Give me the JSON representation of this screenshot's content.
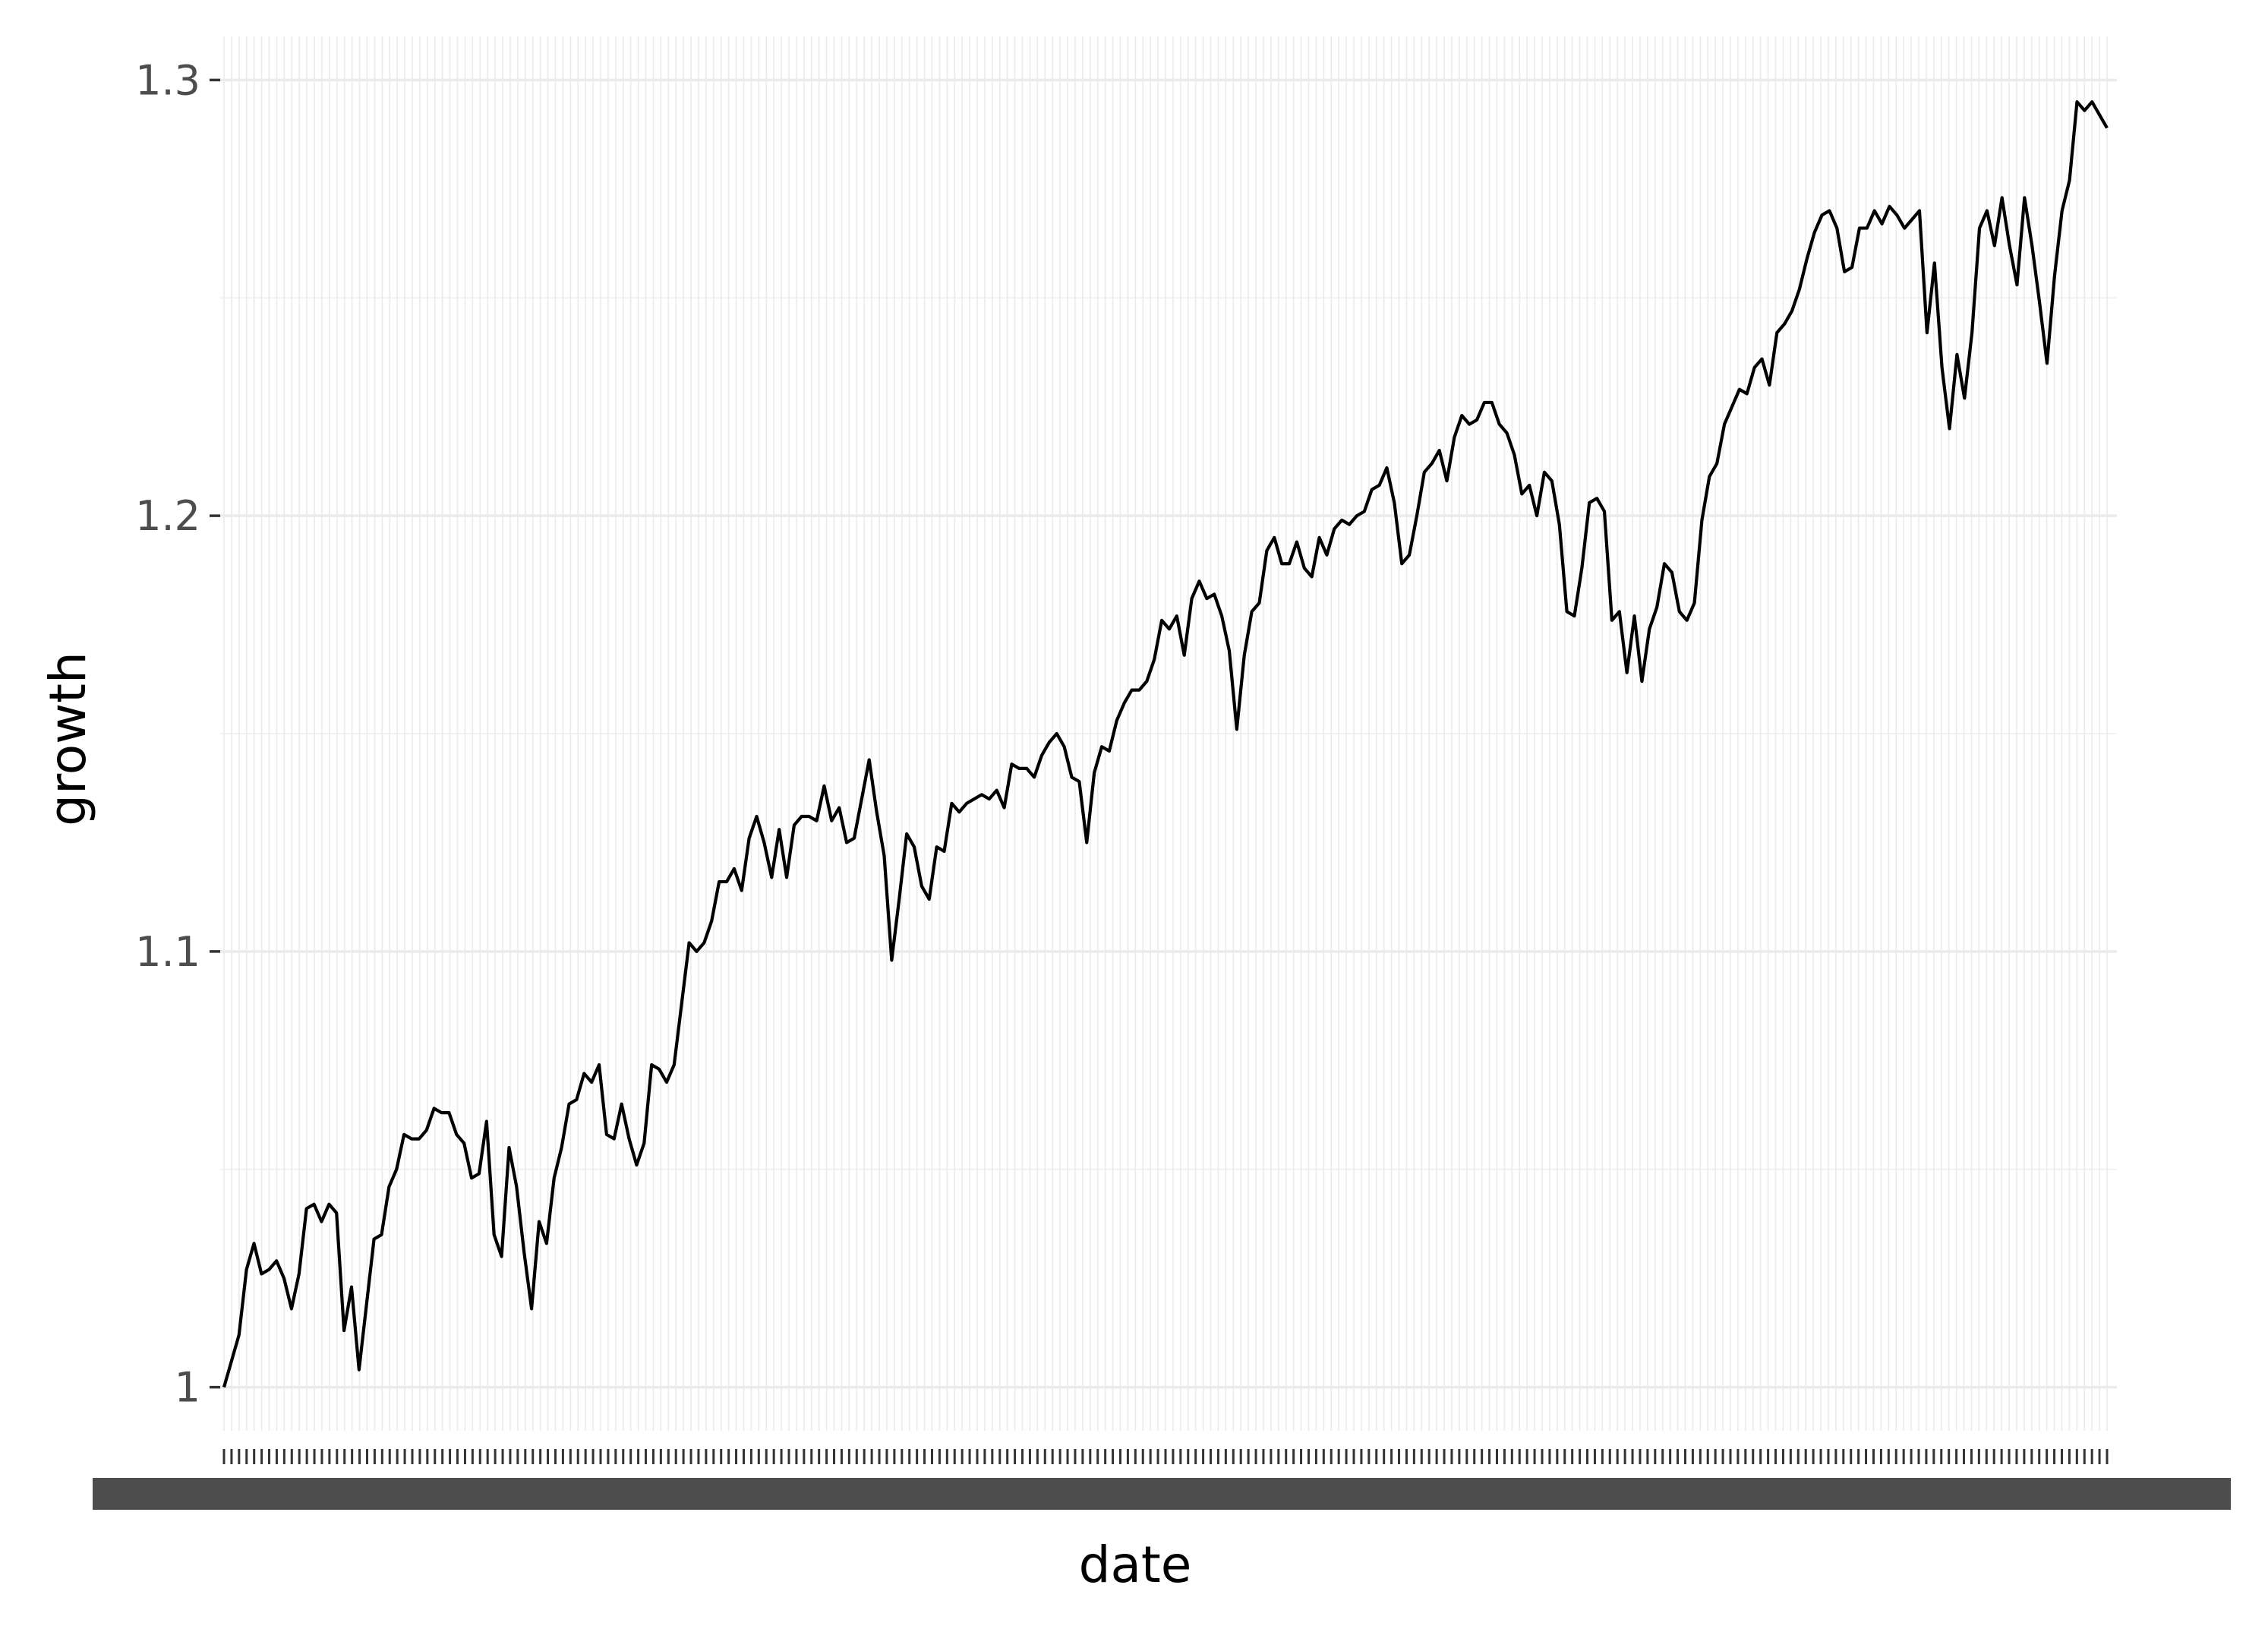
{
  "chart_data": {
    "type": "line",
    "xlabel": "date",
    "ylabel": "growth",
    "ylim": [
      0.99,
      1.31
    ],
    "yticks": [
      1.0,
      1.1,
      1.2,
      1.3
    ],
    "ytick_labels": [
      "1",
      "1.1",
      "1.2",
      "1.3"
    ],
    "x_tick_count": 251,
    "grid": true,
    "series": [
      {
        "values": [
          1.0,
          1.006,
          1.012,
          1.027,
          1.033,
          1.026,
          1.027,
          1.029,
          1.025,
          1.018,
          1.026,
          1.041,
          1.042,
          1.038,
          1.042,
          1.04,
          1.013,
          1.023,
          1.004,
          1.019,
          1.034,
          1.035,
          1.046,
          1.05,
          1.058,
          1.057,
          1.057,
          1.059,
          1.064,
          1.063,
          1.063,
          1.058,
          1.056,
          1.048,
          1.049,
          1.061,
          1.035,
          1.03,
          1.055,
          1.046,
          1.031,
          1.018,
          1.038,
          1.033,
          1.048,
          1.055,
          1.065,
          1.066,
          1.072,
          1.07,
          1.074,
          1.058,
          1.057,
          1.065,
          1.057,
          1.051,
          1.056,
          1.074,
          1.073,
          1.07,
          1.074,
          1.088,
          1.102,
          1.1,
          1.102,
          1.107,
          1.116,
          1.116,
          1.119,
          1.114,
          1.126,
          1.131,
          1.125,
          1.117,
          1.128,
          1.117,
          1.129,
          1.131,
          1.131,
          1.13,
          1.138,
          1.13,
          1.133,
          1.125,
          1.126,
          1.135,
          1.144,
          1.132,
          1.122,
          1.098,
          1.112,
          1.127,
          1.124,
          1.115,
          1.112,
          1.124,
          1.123,
          1.134,
          1.132,
          1.134,
          1.135,
          1.136,
          1.135,
          1.137,
          1.133,
          1.143,
          1.142,
          1.142,
          1.14,
          1.145,
          1.148,
          1.15,
          1.147,
          1.14,
          1.139,
          1.125,
          1.141,
          1.147,
          1.146,
          1.153,
          1.157,
          1.16,
          1.16,
          1.162,
          1.167,
          1.176,
          1.174,
          1.177,
          1.168,
          1.181,
          1.185,
          1.181,
          1.182,
          1.177,
          1.169,
          1.151,
          1.168,
          1.178,
          1.18,
          1.192,
          1.195,
          1.189,
          1.189,
          1.194,
          1.188,
          1.186,
          1.195,
          1.191,
          1.197,
          1.199,
          1.198,
          1.2,
          1.201,
          1.206,
          1.207,
          1.211,
          1.203,
          1.189,
          1.191,
          1.2,
          1.21,
          1.212,
          1.215,
          1.208,
          1.218,
          1.223,
          1.221,
          1.222,
          1.226,
          1.226,
          1.221,
          1.219,
          1.214,
          1.205,
          1.207,
          1.2,
          1.21,
          1.208,
          1.198,
          1.178,
          1.177,
          1.188,
          1.203,
          1.204,
          1.201,
          1.176,
          1.178,
          1.164,
          1.177,
          1.162,
          1.174,
          1.179,
          1.189,
          1.187,
          1.178,
          1.176,
          1.18,
          1.199,
          1.209,
          1.212,
          1.221,
          1.225,
          1.229,
          1.228,
          1.234,
          1.236,
          1.23,
          1.242,
          1.244,
          1.247,
          1.252,
          1.259,
          1.265,
          1.269,
          1.27,
          1.266,
          1.256,
          1.257,
          1.266,
          1.266,
          1.27,
          1.267,
          1.271,
          1.269,
          1.266,
          1.268,
          1.27,
          1.242,
          1.258,
          1.234,
          1.22,
          1.237,
          1.227,
          1.242,
          1.266,
          1.27,
          1.262,
          1.273,
          1.262,
          1.253,
          1.273,
          1.262,
          1.249,
          1.235,
          1.255,
          1.27,
          1.277,
          1.295,
          1.293,
          1.295,
          1.292,
          1.289
        ]
      }
    ]
  }
}
